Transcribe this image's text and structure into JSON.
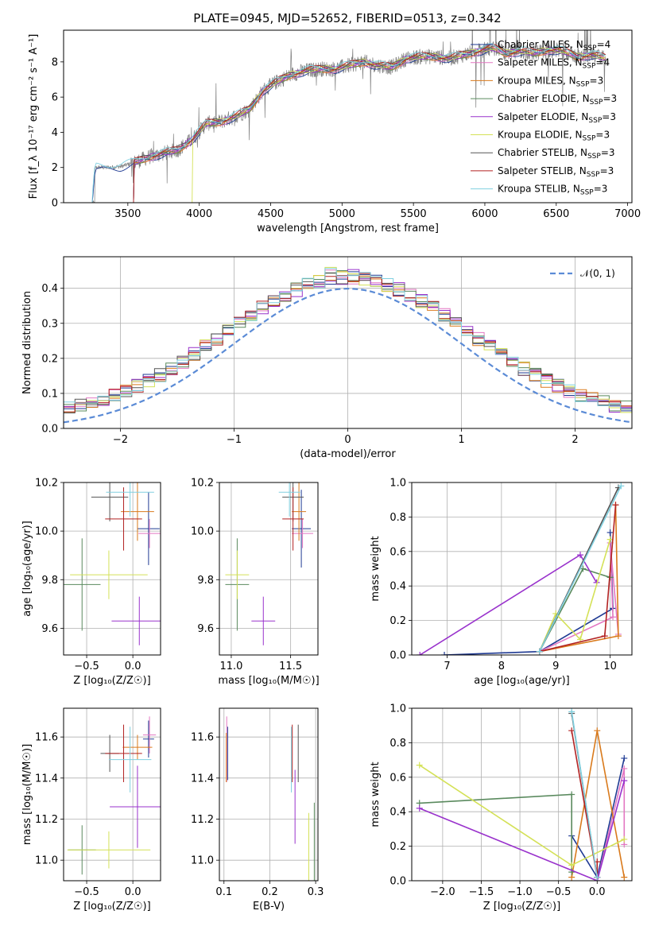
{
  "title": "PLATE=0945, MJD=52652, FIBERID=0513, z=0.342",
  "colors": {
    "chabrier_miles": "#1f3a93",
    "salpeter_miles": "#e377c2",
    "kroupa_miles": "#d97a1c",
    "chabrier_elodie": "#5a8a5e",
    "salpeter_elodie": "#9932cc",
    "kroupa_elodie": "#d4e157",
    "chabrier_stelib": "#555555",
    "salpeter_stelib": "#b22222",
    "kroupa_stelib": "#80d0e0",
    "spectrum": "#808080",
    "gaussian": "#5b8bd6",
    "grid": "#b0b0b0"
  },
  "chart_data": [
    {
      "id": "spectrum",
      "type": "line",
      "xlabel": "wavelength [Angstrom, rest frame]",
      "ylabel": "Flux [f_λ 10⁻¹⁷ erg cm⁻² s⁻¹ A⁻¹]",
      "xlim": [
        3050,
        7030
      ],
      "ylim": [
        0,
        9.8
      ],
      "xticks": [
        "3500",
        "4000",
        "4500",
        "5000",
        "5500",
        "6000",
        "6500",
        "7000"
      ],
      "yticks": [
        "0",
        "2",
        "4",
        "6",
        "8"
      ],
      "grid": false,
      "legend_position": "top-right",
      "legend": [
        {
          "prefix": "Chabrier MILES, N",
          "sub": "SSP",
          "suffix": "=4",
          "color_key": "chabrier_miles"
        },
        {
          "prefix": "Salpeter MILES, N",
          "sub": "SSP",
          "suffix": "=4",
          "color_key": "salpeter_miles"
        },
        {
          "prefix": "Kroupa MILES, N",
          "sub": "SSP",
          "suffix": "=3",
          "color_key": "kroupa_miles"
        },
        {
          "prefix": "Chabrier ELODIE, N",
          "sub": "SSP",
          "suffix": "=3",
          "color_key": "chabrier_elodie"
        },
        {
          "prefix": "Salpeter ELODIE, N",
          "sub": "SSP",
          "suffix": "=3",
          "color_key": "salpeter_elodie"
        },
        {
          "prefix": "Kroupa ELODIE, N",
          "sub": "SSP",
          "suffix": "=3",
          "color_key": "kroupa_elodie"
        },
        {
          "prefix": "Chabrier STELIB, N",
          "sub": "SSP",
          "suffix": "=3",
          "color_key": "chabrier_stelib"
        },
        {
          "prefix": "Salpeter STELIB, N",
          "sub": "SSP",
          "suffix": "=3",
          "color_key": "salpeter_stelib"
        },
        {
          "prefix": "Kroupa STELIB, N",
          "sub": "SSP",
          "suffix": "=3",
          "color_key": "kroupa_stelib"
        }
      ],
      "continuum": [
        [
          3250,
          0.0
        ],
        [
          3270,
          2.0
        ],
        [
          3350,
          2.0
        ],
        [
          3450,
          2.05
        ],
        [
          3550,
          2.3
        ],
        [
          3650,
          2.6
        ],
        [
          3750,
          2.8
        ],
        [
          3850,
          3.0
        ],
        [
          3950,
          3.6
        ],
        [
          4050,
          4.5
        ],
        [
          4150,
          4.6
        ],
        [
          4250,
          4.9
        ],
        [
          4350,
          5.3
        ],
        [
          4450,
          6.4
        ],
        [
          4550,
          6.9
        ],
        [
          4650,
          7.3
        ],
        [
          4750,
          7.5
        ],
        [
          4850,
          7.6
        ],
        [
          4950,
          7.6
        ],
        [
          5050,
          7.8
        ],
        [
          5150,
          8.0
        ],
        [
          5250,
          7.8
        ],
        [
          5350,
          7.7
        ],
        [
          5450,
          8.2
        ],
        [
          5550,
          8.3
        ],
        [
          5650,
          8.3
        ],
        [
          5750,
          8.2
        ],
        [
          5850,
          8.4
        ],
        [
          5950,
          8.6
        ],
        [
          6050,
          8.8
        ],
        [
          6150,
          8.5
        ],
        [
          6250,
          8.6
        ],
        [
          6350,
          8.5
        ],
        [
          6450,
          8.7
        ],
        [
          6550,
          8.6
        ],
        [
          6650,
          8.3
        ],
        [
          6750,
          8.4
        ],
        [
          6850,
          8.2
        ]
      ]
    },
    {
      "id": "residuals",
      "type": "histogram",
      "xlabel": "(data-model)/error",
      "ylabel": "Normed distribution",
      "xlim": [
        -2.5,
        2.5
      ],
      "ylim": [
        0,
        0.49
      ],
      "xticks": [
        "−2",
        "−1",
        "0",
        "1",
        "2"
      ],
      "yticks": [
        "0.0",
        "0.1",
        "0.2",
        "0.3",
        "0.4"
      ],
      "grid": true,
      "legend_position": "top-right",
      "legend": [
        {
          "label": "𝒩(0, 1)",
          "color_key": "gaussian",
          "dashed": true
        }
      ],
      "bin_width": 0.1
    },
    {
      "id": "age-vs-Z",
      "type": "errorbar",
      "xlabel": "Z [log₁₀(Z/Z☉)]",
      "ylabel": "age  [log₁₀(age/yr)]",
      "xlim": [
        -0.75,
        0.3
      ],
      "ylim": [
        9.49,
        10.2
      ],
      "xticks": [
        "−0.5",
        "0.0"
      ],
      "yticks": [
        "9.6",
        "9.8",
        "10.0",
        "10.2"
      ],
      "grid": true,
      "points": [
        {
          "color_key": "chabrier_miles",
          "x": 0.17,
          "xerr": 0.12,
          "y": 10.01,
          "yerr": 0.15
        },
        {
          "color_key": "salpeter_miles",
          "x": 0.18,
          "xerr": 0.12,
          "y": 9.99,
          "yerr": 0.06
        },
        {
          "color_key": "kroupa_miles",
          "x": 0.05,
          "xerr": 0.18,
          "y": 10.08,
          "yerr": 0.12
        },
        {
          "color_key": "chabrier_elodie",
          "x": -0.55,
          "xerr": 0.2,
          "y": 9.78,
          "yerr": 0.19
        },
        {
          "color_key": "salpeter_elodie",
          "x": 0.07,
          "xerr": 0.3,
          "y": 9.63,
          "yerr": 0.1
        },
        {
          "color_key": "kroupa_elodie",
          "x": -0.26,
          "xerr": 0.42,
          "y": 9.82,
          "yerr": 0.1
        },
        {
          "color_key": "chabrier_stelib",
          "x": -0.25,
          "xerr": 0.2,
          "y": 10.14,
          "yerr": 0.1
        },
        {
          "color_key": "salpeter_stelib",
          "x": -0.1,
          "xerr": 0.2,
          "y": 10.05,
          "yerr": 0.13
        },
        {
          "color_key": "kroupa_stelib",
          "x": -0.03,
          "xerr": 0.26,
          "y": 10.16,
          "yerr": 0.1
        }
      ]
    },
    {
      "id": "age-vs-mass",
      "type": "errorbar",
      "xlabel": "mass [log₁₀(M/M☉)]",
      "ylabel": "",
      "xlim": [
        10.9,
        11.73
      ],
      "ylim": [
        9.49,
        10.2
      ],
      "xticks": [
        "11.0",
        "11.5"
      ],
      "yticks": [
        "9.6",
        "9.8",
        "10.0",
        "10.2"
      ],
      "grid": true,
      "points": [
        {
          "color_key": "chabrier_miles",
          "x": 11.59,
          "xerr": 0.08,
          "y": 10.01,
          "yerr": 0.16
        },
        {
          "color_key": "salpeter_miles",
          "x": 11.6,
          "xerr": 0.09,
          "y": 9.99,
          "yerr": 0.06
        },
        {
          "color_key": "kroupa_miles",
          "x": 11.57,
          "xerr": 0.06,
          "y": 10.08,
          "yerr": 0.12
        },
        {
          "color_key": "chabrier_elodie",
          "x": 11.05,
          "xerr": 0.1,
          "y": 9.78,
          "yerr": 0.19
        },
        {
          "color_key": "salpeter_elodie",
          "x": 11.27,
          "xerr": 0.1,
          "y": 9.63,
          "yerr": 0.1
        },
        {
          "color_key": "kroupa_elodie",
          "x": 11.05,
          "xerr": 0.1,
          "y": 9.82,
          "yerr": 0.1
        },
        {
          "color_key": "chabrier_stelib",
          "x": 11.52,
          "xerr": 0.09,
          "y": 10.14,
          "yerr": 0.1
        },
        {
          "color_key": "salpeter_stelib",
          "x": 11.52,
          "xerr": 0.09,
          "y": 10.05,
          "yerr": 0.13
        },
        {
          "color_key": "kroupa_stelib",
          "x": 11.49,
          "xerr": 0.09,
          "y": 10.16,
          "yerr": 0.1
        }
      ]
    },
    {
      "id": "weight-vs-age",
      "type": "line",
      "xlabel": "age  [log₁₀(age/yr)]",
      "ylabel": "mass weight",
      "xlim": [
        6.35,
        10.4
      ],
      "ylim": [
        0,
        1.0
      ],
      "xticks": [
        "7",
        "8",
        "9",
        "10"
      ],
      "yticks": [
        "0.0",
        "0.2",
        "0.4",
        "0.6",
        "0.8",
        "1.0"
      ],
      "grid": true,
      "series": [
        {
          "color_key": "chabrier_miles",
          "points": [
            [
              6.95,
              0.0
            ],
            [
              8.7,
              0.02
            ],
            [
              10.05,
              0.27
            ],
            [
              10.0,
              0.71
            ]
          ]
        },
        {
          "color_key": "salpeter_miles",
          "points": [
            [
              8.7,
              0.02
            ],
            [
              10.05,
              0.22
            ],
            [
              10.0,
              0.65
            ],
            [
              10.15,
              0.12
            ]
          ]
        },
        {
          "color_key": "kroupa_miles",
          "points": [
            [
              8.7,
              0.02
            ],
            [
              10.15,
              0.11
            ],
            [
              10.1,
              0.87
            ]
          ]
        },
        {
          "color_key": "chabrier_elodie",
          "points": [
            [
              8.7,
              0.02
            ],
            [
              9.5,
              0.5
            ],
            [
              10.0,
              0.45
            ]
          ]
        },
        {
          "color_key": "salpeter_elodie",
          "points": [
            [
              6.5,
              0.0
            ],
            [
              9.45,
              0.58
            ],
            [
              9.75,
              0.42
            ]
          ]
        },
        {
          "color_key": "kroupa_elodie",
          "points": [
            [
              8.7,
              0.02
            ],
            [
              9.0,
              0.24
            ],
            [
              9.45,
              0.09
            ],
            [
              10.0,
              0.67
            ]
          ]
        },
        {
          "color_key": "chabrier_stelib",
          "points": [
            [
              8.7,
              0.02
            ],
            [
              10.15,
              0.97
            ]
          ]
        },
        {
          "color_key": "salpeter_stelib",
          "points": [
            [
              8.7,
              0.02
            ],
            [
              9.9,
              0.11
            ],
            [
              10.1,
              0.87
            ]
          ]
        },
        {
          "color_key": "kroupa_stelib",
          "points": [
            [
              8.7,
              0.02
            ],
            [
              10.2,
              0.98
            ]
          ]
        }
      ]
    },
    {
      "id": "mass-vs-Z",
      "type": "errorbar",
      "xlabel": "Z [log₁₀(Z/Z☉)]",
      "ylabel": "mass [log₁₀(M/M☉)]",
      "xlim": [
        -0.75,
        0.3
      ],
      "ylim": [
        10.9,
        11.74
      ],
      "xticks": [
        "−0.5",
        "0.0"
      ],
      "yticks": [
        "11.0",
        "11.2",
        "11.4",
        "11.6"
      ],
      "grid": true,
      "points": [
        {
          "color_key": "chabrier_miles",
          "x": 0.17,
          "xerr": 0.06,
          "y": 11.59,
          "yerr": 0.09
        },
        {
          "color_key": "salpeter_miles",
          "x": 0.18,
          "xerr": 0.07,
          "y": 11.61,
          "yerr": 0.09
        },
        {
          "color_key": "kroupa_miles",
          "x": 0.05,
          "xerr": 0.16,
          "y": 11.55,
          "yerr": 0.06
        },
        {
          "color_key": "chabrier_elodie",
          "x": -0.55,
          "xerr": 0.15,
          "y": 11.05,
          "yerr": 0.12
        },
        {
          "color_key": "salpeter_elodie",
          "x": 0.05,
          "xerr": 0.3,
          "y": 11.26,
          "yerr": 0.2
        },
        {
          "color_key": "kroupa_elodie",
          "x": -0.26,
          "xerr": 0.45,
          "y": 11.05,
          "yerr": 0.09
        },
        {
          "color_key": "chabrier_stelib",
          "x": -0.25,
          "xerr": 0.1,
          "y": 11.52,
          "yerr": 0.09
        },
        {
          "color_key": "salpeter_stelib",
          "x": -0.1,
          "xerr": 0.2,
          "y": 11.52,
          "yerr": 0.14
        },
        {
          "color_key": "kroupa_stelib",
          "x": -0.03,
          "xerr": 0.23,
          "y": 11.49,
          "yerr": 0.16
        }
      ]
    },
    {
      "id": "mass-vs-ebv",
      "type": "errorbar",
      "xlabel": "E(B-V)",
      "ylabel": "",
      "xlim": [
        0.09,
        0.305
      ],
      "ylim": [
        10.9,
        11.74
      ],
      "xticks": [
        "0.1",
        "0.2",
        "0.3"
      ],
      "yticks": [
        "11.0",
        "11.2",
        "11.4",
        "11.6"
      ],
      "grid": true,
      "points": [
        {
          "color_key": "chabrier_miles",
          "x": 0.108,
          "y": 11.52,
          "yerr": 0.13
        },
        {
          "color_key": "salpeter_miles",
          "x": 0.106,
          "y": 11.54,
          "yerr": 0.16
        },
        {
          "color_key": "kroupa_miles",
          "x": 0.105,
          "y": 11.5,
          "yerr": 0.12
        },
        {
          "color_key": "chabrier_elodie",
          "x": 0.297,
          "y": 11.08,
          "yerr": 0.2
        },
        {
          "color_key": "salpeter_elodie",
          "x": 0.255,
          "y": 11.26,
          "yerr": 0.18
        },
        {
          "color_key": "kroupa_elodie",
          "x": 0.285,
          "y": 11.05,
          "yerr": 0.18
        },
        {
          "color_key": "chabrier_stelib",
          "x": 0.262,
          "y": 11.52,
          "yerr": 0.14
        },
        {
          "color_key": "salpeter_stelib",
          "x": 0.249,
          "y": 11.52,
          "yerr": 0.14
        },
        {
          "color_key": "kroupa_stelib",
          "x": 0.247,
          "y": 11.49,
          "yerr": 0.16
        }
      ]
    },
    {
      "id": "weight-vs-Z",
      "type": "line",
      "xlabel": "Z [log₁₀(Z/Z☉)]",
      "ylabel": "mass weight",
      "xlim": [
        -2.4,
        0.45
      ],
      "ylim": [
        0,
        1.0
      ],
      "xticks": [
        "−2.0",
        "−1.5",
        "−1.0",
        "−0.5",
        "0.0"
      ],
      "yticks": [
        "0.0",
        "0.2",
        "0.4",
        "0.6",
        "0.8",
        "1.0"
      ],
      "grid": true,
      "series": [
        {
          "color_key": "chabrier_miles",
          "points": [
            [
              -0.33,
              0.26
            ],
            [
              0.0,
              0.02
            ],
            [
              0.35,
              0.71
            ]
          ]
        },
        {
          "color_key": "salpeter_miles",
          "points": [
            [
              0.0,
              0.0
            ],
            [
              0.35,
              0.65
            ],
            [
              0.35,
              0.21
            ]
          ]
        },
        {
          "color_key": "kroupa_miles",
          "points": [
            [
              -0.33,
              0.02
            ],
            [
              0.0,
              0.87
            ],
            [
              0.35,
              0.02
            ]
          ]
        },
        {
          "color_key": "chabrier_elodie",
          "points": [
            [
              -2.3,
              0.45
            ],
            [
              -0.33,
              0.5
            ],
            [
              -0.33,
              0.05
            ]
          ]
        },
        {
          "color_key": "salpeter_elodie",
          "points": [
            [
              -2.3,
              0.42
            ],
            [
              0.0,
              0.0
            ],
            [
              0.35,
              0.58
            ]
          ]
        },
        {
          "color_key": "kroupa_elodie",
          "points": [
            [
              -2.3,
              0.67
            ],
            [
              -0.33,
              0.09
            ],
            [
              0.35,
              0.24
            ]
          ]
        },
        {
          "color_key": "chabrier_stelib",
          "points": [
            [
              -0.33,
              0.97
            ],
            [
              0.0,
              0.02
            ]
          ]
        },
        {
          "color_key": "salpeter_stelib",
          "points": [
            [
              -0.33,
              0.87
            ],
            [
              0.0,
              0.02
            ],
            [
              0.0,
              0.11
            ]
          ]
        },
        {
          "color_key": "kroupa_stelib",
          "points": [
            [
              -0.33,
              0.98
            ],
            [
              0.0,
              0.02
            ]
          ]
        }
      ]
    }
  ]
}
